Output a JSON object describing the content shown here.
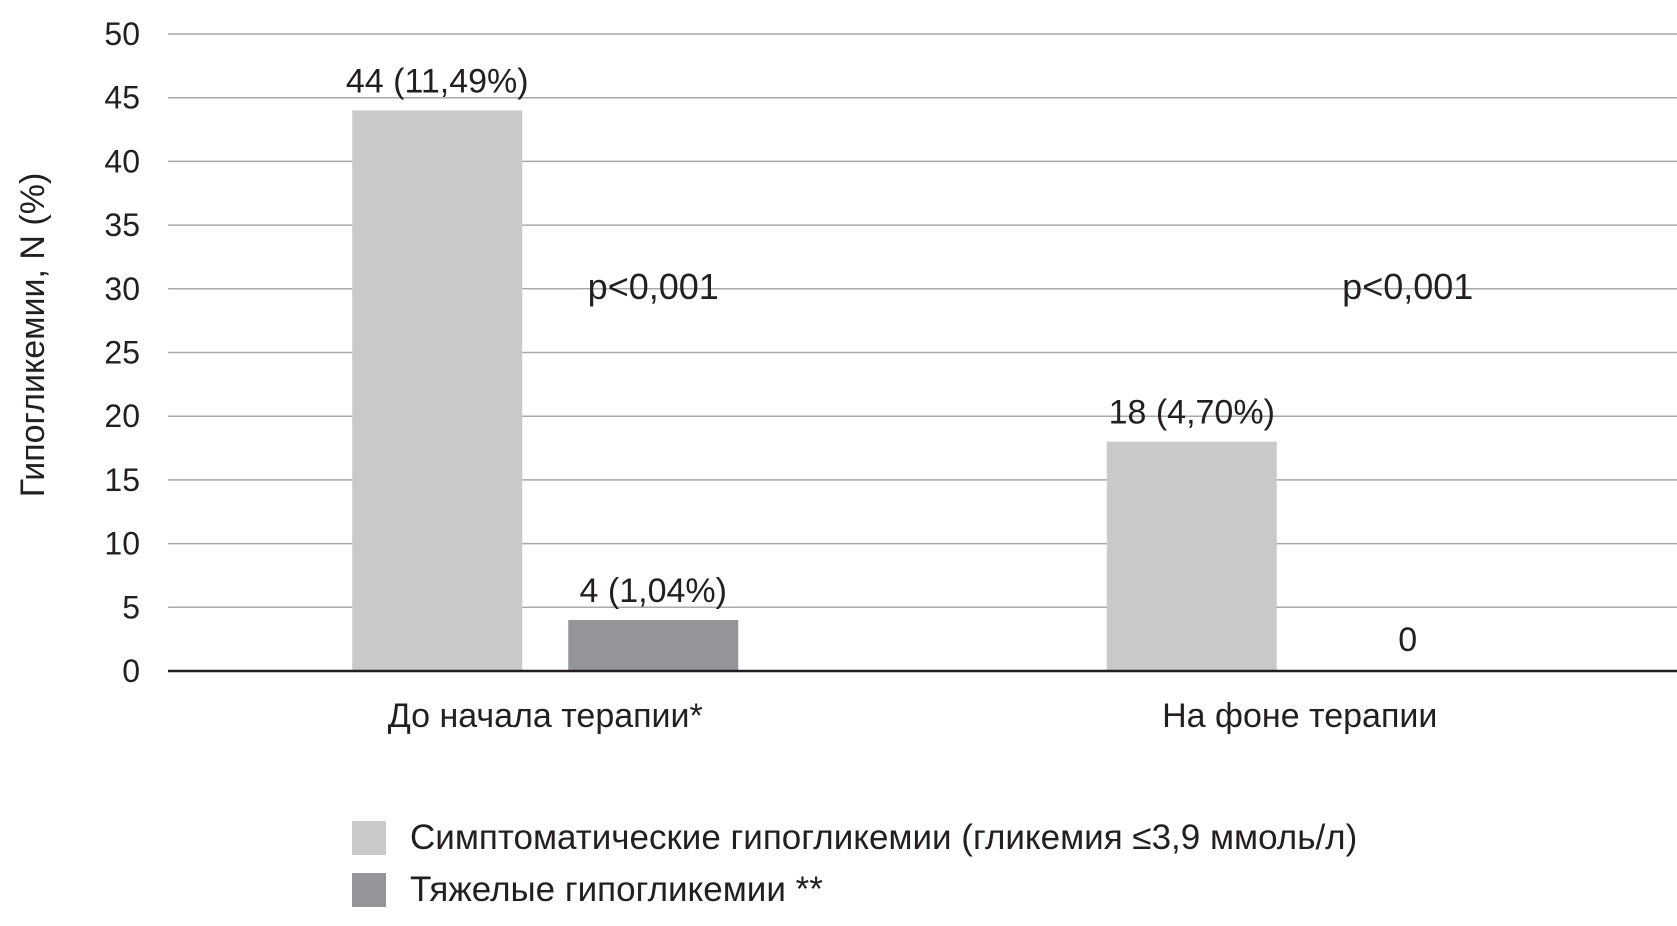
{
  "chart_data": {
    "type": "bar",
    "title": "",
    "xlabel": "",
    "ylabel": "Гипогликемии, N (%)",
    "ylim": [
      0,
      50
    ],
    "yticks": [
      "0",
      "5",
      "10",
      "15",
      "20",
      "25",
      "30",
      "35",
      "40",
      "45",
      "50"
    ],
    "grid": true,
    "legend_position": "bottom",
    "categories": [
      "До начала терапии*",
      "На фоне терапии"
    ],
    "series": [
      {
        "name": "Симптоматические гипогликемии (гликемия ≤3,9 ммоль/л)",
        "color": "#c8c9cb",
        "values": [
          44,
          18
        ],
        "labels": [
          "44 (11,49%)",
          "18 (4,70%)"
        ]
      },
      {
        "name": "Тяжелые гипогликемии **",
        "color": "#939598",
        "values": [
          4,
          0
        ],
        "labels": [
          "4 (1,04%)",
          "0"
        ]
      }
    ],
    "annotations": [
      "p<0,001",
      "p<0,001"
    ]
  }
}
